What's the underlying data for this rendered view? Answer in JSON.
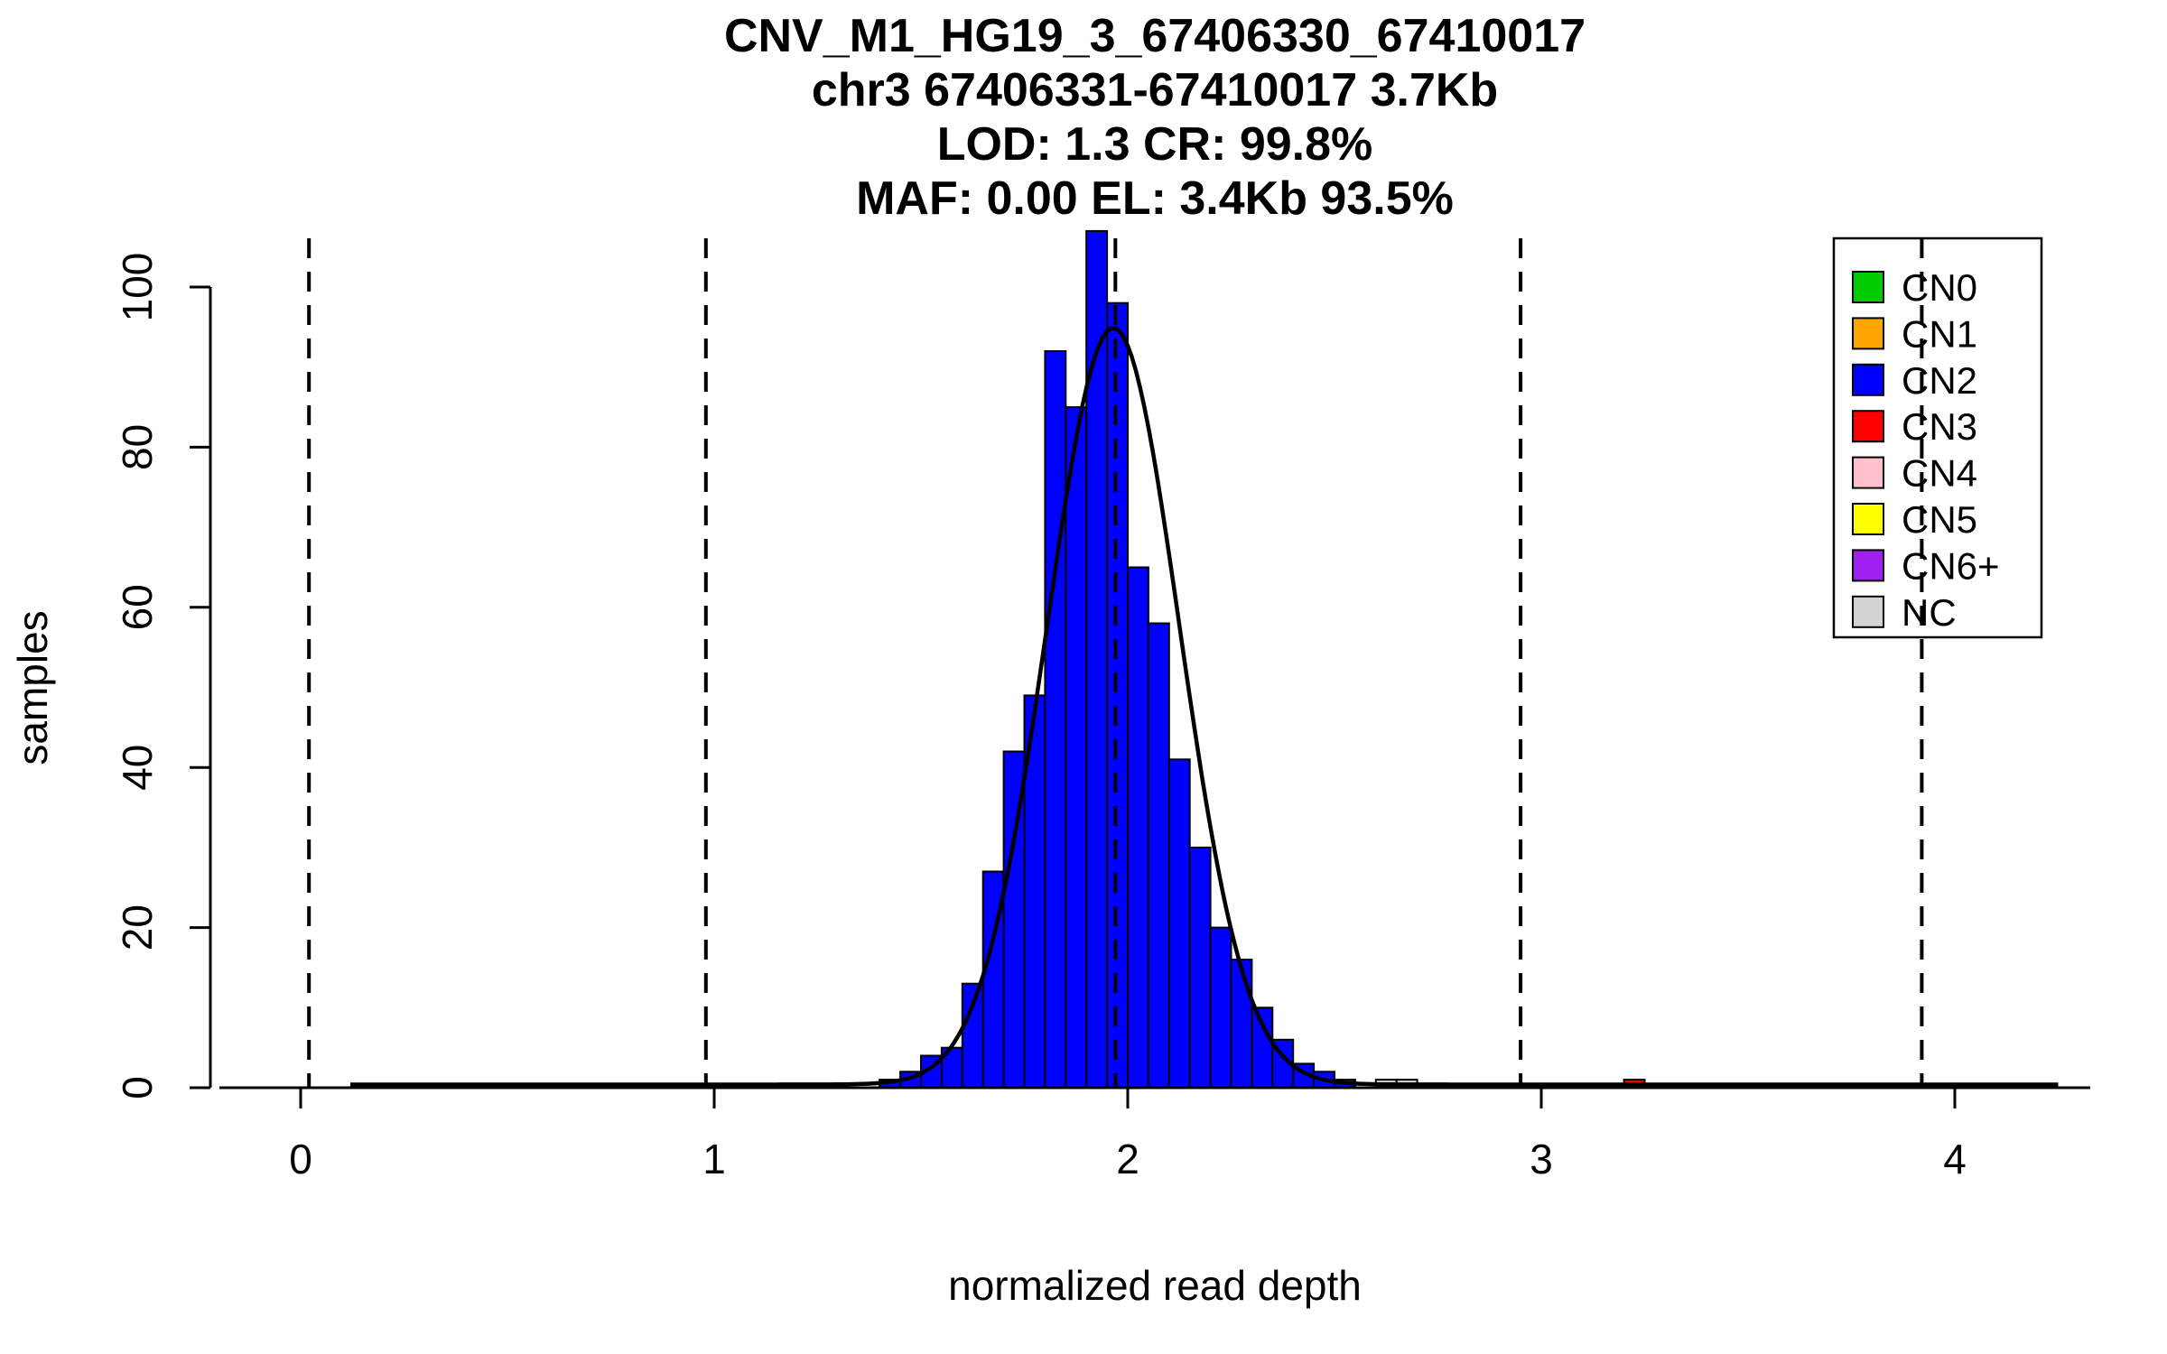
{
  "chart_data": {
    "type": "bar",
    "title_lines": [
      "CNV_M1_HG19_3_67406330_67410017",
      "chr3 67406331-67410017 3.7Kb",
      "LOD: 1.3 CR: 99.8%",
      "MAF: 0.00 EL: 3.4Kb 93.5%"
    ],
    "xlabel": "normalized read depth",
    "ylabel": "samples",
    "x_ticks": [
      0,
      1,
      2,
      3,
      4
    ],
    "y_ticks": [
      0,
      20,
      40,
      60,
      80,
      100
    ],
    "xlim": [
      -0.2,
      4.33
    ],
    "ylim": [
      0,
      110
    ],
    "grid": false,
    "legend_position": "top-right",
    "bin_width": 0.05,
    "bars": [
      {
        "x": 1.4,
        "count": 1,
        "cn": "CN2"
      },
      {
        "x": 1.45,
        "count": 2,
        "cn": "CN2"
      },
      {
        "x": 1.5,
        "count": 4,
        "cn": "CN2"
      },
      {
        "x": 1.55,
        "count": 5,
        "cn": "CN2"
      },
      {
        "x": 1.6,
        "count": 13,
        "cn": "CN2"
      },
      {
        "x": 1.65,
        "count": 27,
        "cn": "CN2"
      },
      {
        "x": 1.7,
        "count": 42,
        "cn": "CN2"
      },
      {
        "x": 1.75,
        "count": 49,
        "cn": "CN2"
      },
      {
        "x": 1.8,
        "count": 92,
        "cn": "CN2"
      },
      {
        "x": 1.85,
        "count": 85,
        "cn": "CN2"
      },
      {
        "x": 1.9,
        "count": 107,
        "cn": "CN2"
      },
      {
        "x": 1.95,
        "count": 98,
        "cn": "CN2"
      },
      {
        "x": 2.0,
        "count": 65,
        "cn": "CN2"
      },
      {
        "x": 2.05,
        "count": 58,
        "cn": "CN2"
      },
      {
        "x": 2.1,
        "count": 41,
        "cn": "CN2"
      },
      {
        "x": 2.15,
        "count": 30,
        "cn": "CN2"
      },
      {
        "x": 2.2,
        "count": 20,
        "cn": "CN2"
      },
      {
        "x": 2.25,
        "count": 16,
        "cn": "CN2"
      },
      {
        "x": 2.3,
        "count": 10,
        "cn": "CN2"
      },
      {
        "x": 2.35,
        "count": 6,
        "cn": "CN2"
      },
      {
        "x": 2.4,
        "count": 3,
        "cn": "CN2"
      },
      {
        "x": 2.45,
        "count": 2,
        "cn": "CN2"
      },
      {
        "x": 2.5,
        "count": 1,
        "cn": "CN2"
      },
      {
        "x": 2.6,
        "count": 1,
        "cn": "NC"
      },
      {
        "x": 2.65,
        "count": 1,
        "cn": "NC"
      },
      {
        "x": 3.2,
        "count": 1,
        "cn": "CN3"
      }
    ],
    "curve": {
      "mean": 1.965,
      "sd": 0.16,
      "amplitude": 94.5,
      "baseline": 0.4,
      "x_range": [
        0.12,
        4.25
      ]
    },
    "dashed_lines_x": [
      0.02,
      0.98,
      1.97,
      2.95,
      3.92
    ],
    "legend": {
      "items": [
        {
          "label": "CN0",
          "color": "#00CC00"
        },
        {
          "label": "CN1",
          "color": "#FFA500"
        },
        {
          "label": "CN2",
          "color": "#0000FF"
        },
        {
          "label": "CN3",
          "color": "#FF0000"
        },
        {
          "label": "CN4",
          "color": "#FFC0CB"
        },
        {
          "label": "CN5",
          "color": "#FFFF00"
        },
        {
          "label": "CN6+",
          "color": "#A020F0"
        },
        {
          "label": "NC",
          "color": "#D3D3D3"
        }
      ]
    }
  }
}
